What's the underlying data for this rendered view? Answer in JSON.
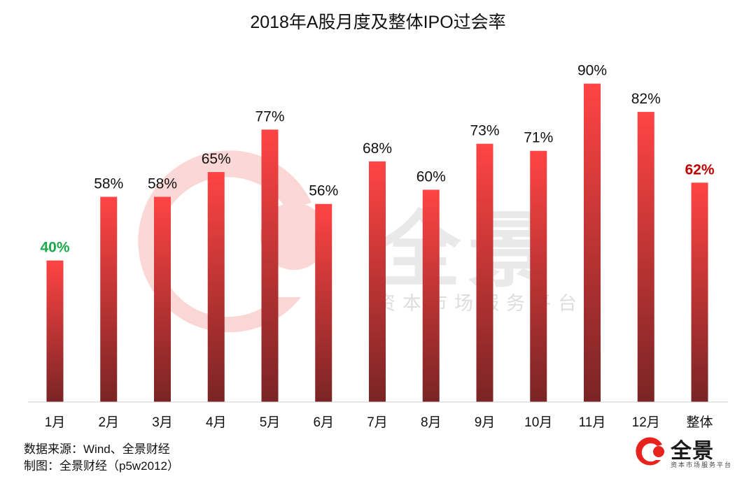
{
  "chart_data": {
    "type": "bar",
    "title": "2018年A股月度及整体IPO过会率",
    "categories": [
      "1月",
      "2月",
      "3月",
      "4月",
      "5月",
      "6月",
      "7月",
      "8月",
      "9月",
      "10月",
      "11月",
      "12月",
      "整体"
    ],
    "values": [
      40,
      58,
      58,
      65,
      77,
      56,
      68,
      60,
      73,
      71,
      90,
      82,
      62
    ],
    "value_labels": [
      "40%",
      "58%",
      "58%",
      "65%",
      "77%",
      "56%",
      "68%",
      "60%",
      "73%",
      "71%",
      "90%",
      "82%",
      "62%"
    ],
    "label_colors": [
      "#1aaa4a",
      "#111111",
      "#111111",
      "#111111",
      "#111111",
      "#111111",
      "#111111",
      "#111111",
      "#111111",
      "#111111",
      "#111111",
      "#111111",
      "#c00000"
    ],
    "ylim": [
      0,
      100
    ],
    "xlabel": "",
    "ylabel": "",
    "grid": false,
    "bar_gradient": [
      "#ff4444",
      "#7a2424"
    ]
  },
  "footer": {
    "source": "数据来源：Wind、全景财经",
    "maker": "制图：全景财经（p5w2012）"
  },
  "watermark": {
    "text": "全景",
    "subtitle": "资本市场服务平台"
  },
  "brand": {
    "name": "全景",
    "subtitle": "资本市场服务平台",
    "accent": "#e8231e"
  }
}
